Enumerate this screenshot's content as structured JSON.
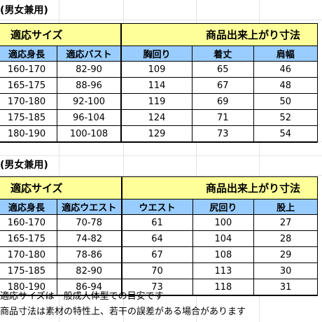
{
  "table1": {
    "caption": "(男女兼用)",
    "group_fit": "適応サイズ",
    "group_product": "商品出来上がり寸法",
    "headers": [
      "適応身長",
      "適応バスト",
      "胸回り",
      "着丈",
      "肩幅"
    ],
    "rows": [
      [
        "160-170",
        "82-90",
        "109",
        "65",
        "46"
      ],
      [
        "165-175",
        "88-96",
        "114",
        "67",
        "48"
      ],
      [
        "170-180",
        "92-100",
        "119",
        "69",
        "50"
      ],
      [
        "175-185",
        "96-104",
        "124",
        "71",
        "52"
      ],
      [
        "180-190",
        "100-108",
        "129",
        "73",
        "54"
      ]
    ]
  },
  "table2": {
    "caption": "(男女兼用)",
    "group_fit": "適応サイズ",
    "group_product": "商品出来上がり寸法",
    "headers": [
      "適応身長",
      "適応ウエスト",
      "ウエスト",
      "尻回り",
      "股上"
    ],
    "rows": [
      [
        "160-170",
        "70-78",
        "61",
        "100",
        "27"
      ],
      [
        "165-175",
        "74-82",
        "64",
        "104",
        "28"
      ],
      [
        "170-180",
        "78-86",
        "67",
        "108",
        "29"
      ],
      [
        "175-185",
        "82-90",
        "70",
        "113",
        "30"
      ],
      [
        "180-190",
        "86-94",
        "73",
        "118",
        "31"
      ]
    ]
  },
  "notes": [
    "適応サイズは一般成人体型での目安です",
    "商品寸法は素材の特性上、若干の誤差がある場合があります"
  ],
  "colors": {
    "group_header_bg": "#ffff99",
    "column_header_bg": "#99ccff",
    "gridline": "#e4e4e4"
  }
}
